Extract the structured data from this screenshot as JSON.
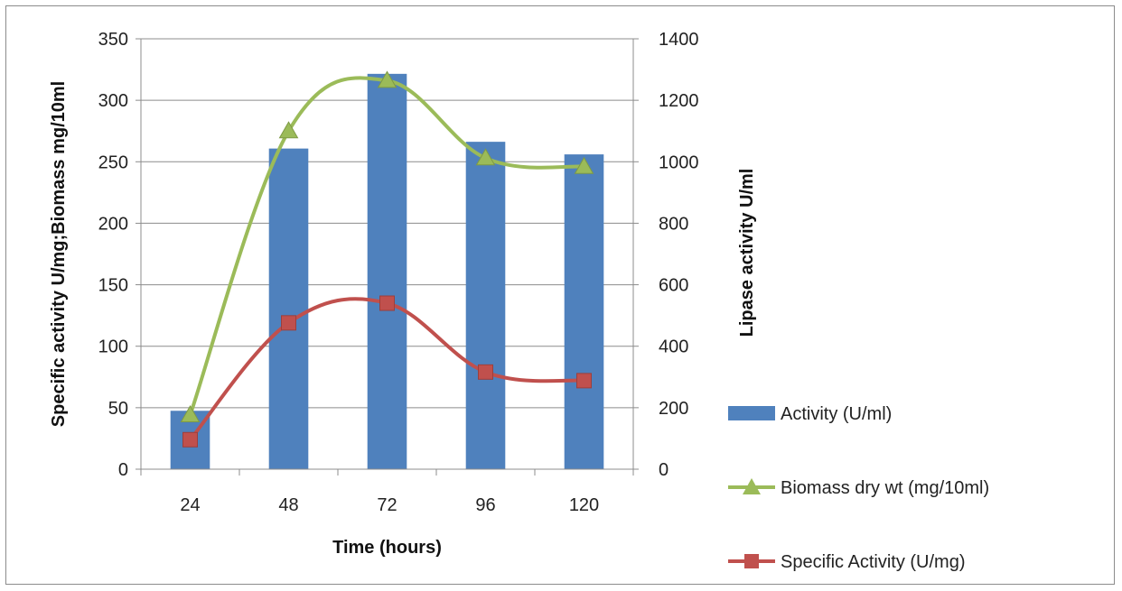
{
  "chart_data": {
    "type": "bar+line",
    "categories": [
      "24",
      "48",
      "72",
      "96",
      "120"
    ],
    "x_label": "Time (hours)",
    "y_left_label": "Specific activity U/mg;Biomass mg/10ml",
    "y_right_label": "Lipase activity U/ml",
    "y_left_range": [
      0,
      350
    ],
    "y_left_ticks": [
      "0",
      "50",
      "100",
      "150",
      "200",
      "250",
      "300",
      "350"
    ],
    "y_right_range": [
      0,
      1400
    ],
    "y_right_ticks": [
      "0",
      "200",
      "400",
      "600",
      "800",
      "1000",
      "1200",
      "1400"
    ],
    "grid": "horizontal",
    "legend_position": "right",
    "series": [
      {
        "name": "Activity (U/ml)",
        "type": "bar",
        "axis": "right",
        "color": "#4f81bd",
        "values": [
          190,
          1043,
          1286,
          1065,
          1024
        ]
      },
      {
        "name": "Biomass dry  wt (mg/10ml)",
        "type": "line",
        "axis": "left",
        "color": "#9bbb59",
        "marker": "triangle",
        "values": [
          44,
          275,
          316,
          253,
          246
        ]
      },
      {
        "name": "Specific Activity (U/mg)",
        "type": "line",
        "axis": "left",
        "color": "#c0504d",
        "marker": "square",
        "values": [
          24,
          119,
          135,
          79,
          72
        ]
      }
    ]
  }
}
